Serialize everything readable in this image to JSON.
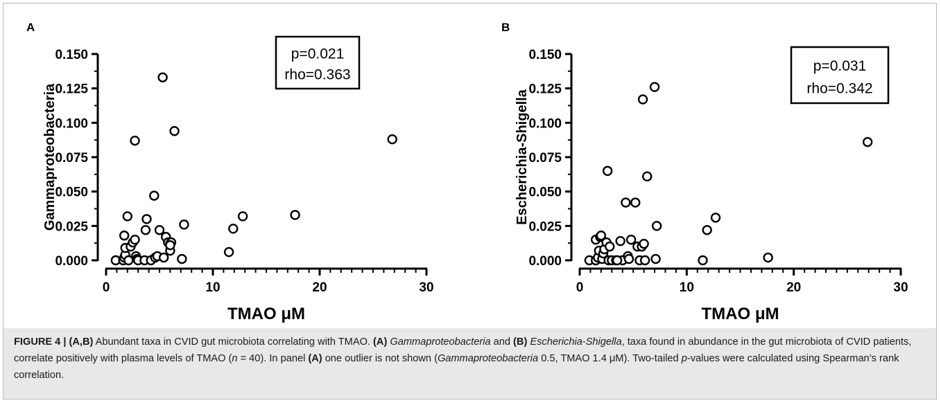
{
  "chart_data": [
    {
      "type": "scatter",
      "panel_label": "A",
      "xlabel": "TMAO μM",
      "ylabel": "Gammaproteobacteria",
      "xlim": [
        0,
        30
      ],
      "ylim": [
        0,
        0.15
      ],
      "x_ticks": [
        "0",
        "10",
        "20",
        "30"
      ],
      "y_ticks": [
        "0.000",
        "0.025",
        "0.050",
        "0.075",
        "0.100",
        "0.125",
        "0.150"
      ],
      "stats_line1": "p=0.021",
      "stats_line2": "rho=0.363",
      "grid": false,
      "points": [
        {
          "x": 0.9,
          "y": 0.0
        },
        {
          "x": 1.6,
          "y": 0.0
        },
        {
          "x": 1.7,
          "y": 0.002
        },
        {
          "x": 1.8,
          "y": 0.004
        },
        {
          "x": 1.7,
          "y": 0.018
        },
        {
          "x": 1.8,
          "y": 0.009
        },
        {
          "x": 2.0,
          "y": 0.032
        },
        {
          "x": 2.3,
          "y": 0.01
        },
        {
          "x": 2.5,
          "y": 0.013
        },
        {
          "x": 2.7,
          "y": 0.015
        },
        {
          "x": 2.8,
          "y": 0.003
        },
        {
          "x": 2.9,
          "y": 0.001
        },
        {
          "x": 2.7,
          "y": 0.087
        },
        {
          "x": 3.0,
          "y": 0.0
        },
        {
          "x": 3.6,
          "y": 0.0
        },
        {
          "x": 3.7,
          "y": 0.022
        },
        {
          "x": 3.8,
          "y": 0.03
        },
        {
          "x": 4.2,
          "y": 0.0
        },
        {
          "x": 4.5,
          "y": 0.047
        },
        {
          "x": 4.6,
          "y": 0.002
        },
        {
          "x": 4.8,
          "y": 0.003
        },
        {
          "x": 5.0,
          "y": 0.022
        },
        {
          "x": 5.3,
          "y": 0.133
        },
        {
          "x": 5.4,
          "y": 0.002
        },
        {
          "x": 5.6,
          "y": 0.017
        },
        {
          "x": 5.8,
          "y": 0.013
        },
        {
          "x": 6.0,
          "y": 0.012
        },
        {
          "x": 6.0,
          "y": 0.007
        },
        {
          "x": 6.1,
          "y": 0.013
        },
        {
          "x": 6.4,
          "y": 0.094
        },
        {
          "x": 7.1,
          "y": 0.001
        },
        {
          "x": 7.3,
          "y": 0.026
        },
        {
          "x": 11.5,
          "y": 0.006
        },
        {
          "x": 11.9,
          "y": 0.023
        },
        {
          "x": 12.8,
          "y": 0.032
        },
        {
          "x": 17.7,
          "y": 0.033
        },
        {
          "x": 26.8,
          "y": 0.088
        },
        {
          "x": 6.0,
          "y": 0.011
        },
        {
          "x": 2.1,
          "y": 0.0
        }
      ]
    },
    {
      "type": "scatter",
      "panel_label": "B",
      "xlabel": "TMAO μM",
      "ylabel": "Escherichia-Shigella",
      "xlim": [
        0,
        30
      ],
      "ylim": [
        0,
        0.15
      ],
      "x_ticks": [
        "0",
        "10",
        "20",
        "30"
      ],
      "y_ticks": [
        "0.000",
        "0.025",
        "0.050",
        "0.075",
        "0.100",
        "0.125",
        "0.150"
      ],
      "stats_line1": "p=0.031",
      "stats_line2": "rho=0.342",
      "grid": false,
      "points": [
        {
          "x": 0.9,
          "y": 0.0
        },
        {
          "x": 1.5,
          "y": 0.0
        },
        {
          "x": 1.5,
          "y": 0.015
        },
        {
          "x": 1.7,
          "y": 0.002
        },
        {
          "x": 1.8,
          "y": 0.007
        },
        {
          "x": 1.9,
          "y": 0.017
        },
        {
          "x": 2.0,
          "y": 0.018
        },
        {
          "x": 2.1,
          "y": 0.001
        },
        {
          "x": 2.2,
          "y": 0.005
        },
        {
          "x": 2.3,
          "y": 0.008
        },
        {
          "x": 2.5,
          "y": 0.013
        },
        {
          "x": 2.6,
          "y": 0.065
        },
        {
          "x": 2.7,
          "y": 0.0
        },
        {
          "x": 2.8,
          "y": 0.01
        },
        {
          "x": 3.0,
          "y": 0.0
        },
        {
          "x": 3.4,
          "y": 0.0
        },
        {
          "x": 3.8,
          "y": 0.014
        },
        {
          "x": 4.0,
          "y": 0.0
        },
        {
          "x": 4.3,
          "y": 0.042
        },
        {
          "x": 4.5,
          "y": 0.003
        },
        {
          "x": 4.6,
          "y": 0.001
        },
        {
          "x": 4.8,
          "y": 0.015
        },
        {
          "x": 5.2,
          "y": 0.042
        },
        {
          "x": 5.4,
          "y": 0.01
        },
        {
          "x": 5.6,
          "y": 0.0
        },
        {
          "x": 5.8,
          "y": 0.01
        },
        {
          "x": 5.9,
          "y": 0.117
        },
        {
          "x": 6.0,
          "y": 0.012
        },
        {
          "x": 6.1,
          "y": 0.0
        },
        {
          "x": 6.3,
          "y": 0.061
        },
        {
          "x": 7.0,
          "y": 0.126
        },
        {
          "x": 7.1,
          "y": 0.001
        },
        {
          "x": 7.2,
          "y": 0.025
        },
        {
          "x": 11.5,
          "y": 0.0
        },
        {
          "x": 11.9,
          "y": 0.022
        },
        {
          "x": 12.7,
          "y": 0.031
        },
        {
          "x": 17.6,
          "y": 0.002
        },
        {
          "x": 26.9,
          "y": 0.086
        },
        {
          "x": 3.5,
          "y": 0.0
        }
      ]
    }
  ],
  "caption": {
    "fig_label": "FIGURE 4 | ",
    "p1": "(A,B)",
    "p2": " Abundant taxa in CVID gut microbiota correlating with TMAO. ",
    "p3": "(A)",
    "p4": "Gammaproteobacteria",
    "p5": " and ",
    "p6": "(B)",
    "p7": "Escherichia-Shigella",
    "p8": ", taxa found in abundance in the gut microbiota of CVID patients, correlate positively with plasma levels of TMAO (",
    "p9": "n",
    "p10": " = 40). In panel ",
    "p11": "(A)",
    "p12": " one outlier is not shown (",
    "p13": "Gammaproteobacteria",
    "p14": " 0.5, TMAO 1.4 μM). Two-tailed ",
    "p15": "p",
    "p16": "-values were calculated using Spearman’s rank correlation."
  }
}
